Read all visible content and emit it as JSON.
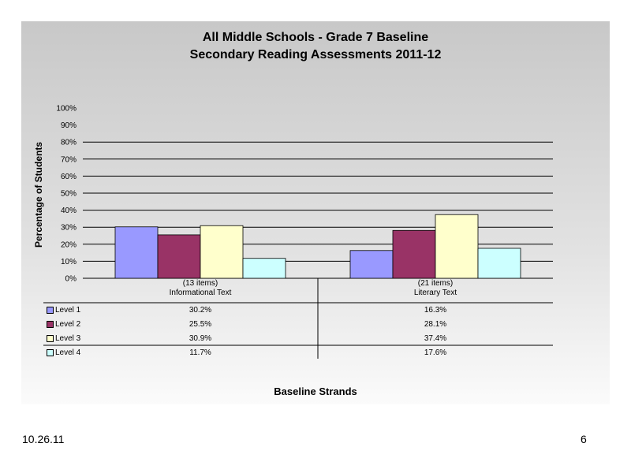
{
  "chart_data": {
    "type": "bar",
    "title": "All Middle Schools - Grade 7 Baseline",
    "subtitle": "Secondary Reading Assessments 2011-12",
    "xlabel": "Baseline Strands",
    "ylabel": "Percentage of Students",
    "categories": [
      {
        "items": "(13 items)",
        "name": "Informational Text"
      },
      {
        "items": "(21 items)",
        "name": "Literary Text"
      }
    ],
    "series": [
      {
        "name": "Level 1",
        "color": "#9999ff",
        "values": [
          30.2,
          16.3
        ],
        "labels": [
          "30.2%",
          "16.3%"
        ]
      },
      {
        "name": "Level 2",
        "color": "#993366",
        "values": [
          25.5,
          28.1
        ],
        "labels": [
          "25.5%",
          "28.1%"
        ]
      },
      {
        "name": "Level 3",
        "color": "#ffffcc",
        "values": [
          30.9,
          37.4
        ],
        "labels": [
          "30.9%",
          "37.4%"
        ]
      },
      {
        "name": "Level 4",
        "color": "#ccffff",
        "values": [
          11.7,
          17.6
        ],
        "labels": [
          "11.7%",
          "17.6%"
        ]
      }
    ],
    "ylim": [
      0,
      100
    ],
    "yticks": [
      "0%",
      "10%",
      "20%",
      "30%",
      "40%",
      "50%",
      "60%",
      "70%",
      "80%",
      "90%",
      "100%"
    ],
    "gridlines": [
      10,
      20,
      30,
      40,
      50,
      60,
      70,
      80
    ],
    "legend": "data-table"
  },
  "footer": {
    "date": "10.26.11",
    "page": "6"
  }
}
